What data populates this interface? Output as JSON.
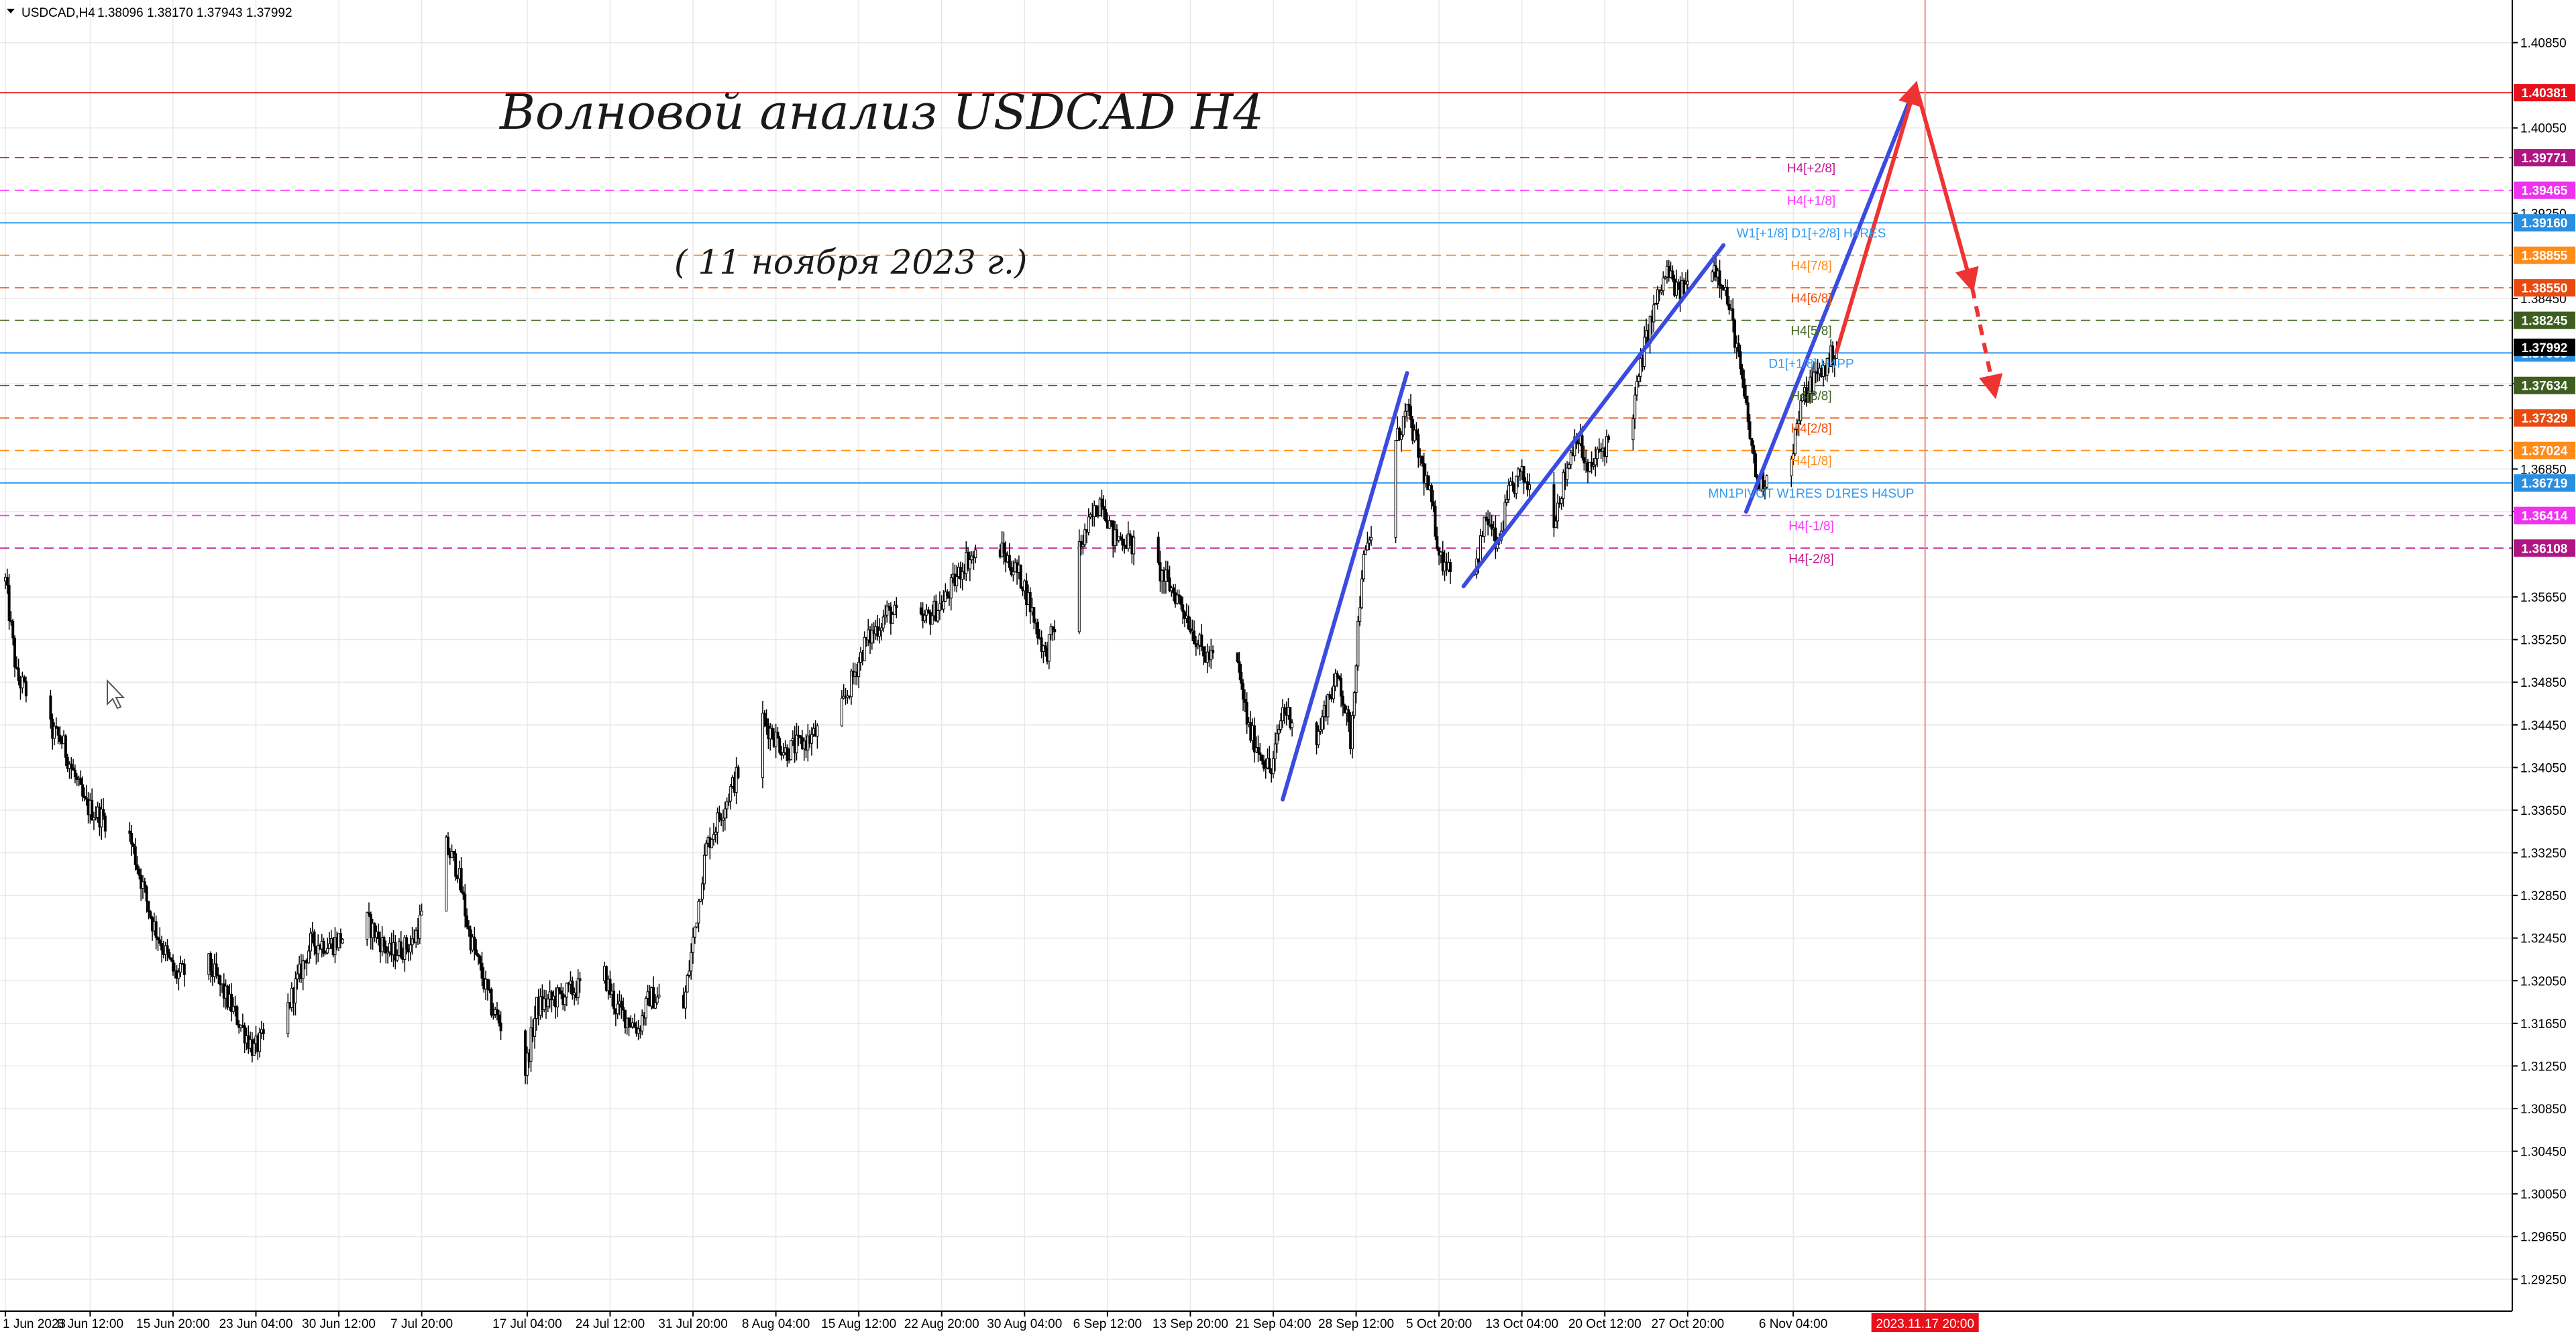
{
  "header": {
    "symbol": "USDCAD,H4",
    "ohlc": "1.38096 1.38170 1.37943 1.37992"
  },
  "title": "Волновой анализ USDCAD H4",
  "subtitle": "( 11 ноября 2023 г.)",
  "colors": {
    "background": "#ffffff",
    "grid": "#e6e6e6",
    "candle": "#000000",
    "wave": "#3a4be0",
    "forecast": "#ee3333",
    "vline": "#f08a8a",
    "axis": "#000000"
  },
  "chart_data": {
    "type": "candlestick",
    "symbol": "USDCAD",
    "timeframe": "H4",
    "ylim": [
      1.2895,
      1.4125
    ],
    "xlim": [
      "2023-06-01",
      "2023-11-24"
    ],
    "grid": true,
    "y_ticks": [
      "1.40850",
      "1.40050",
      "1.39250",
      "1.38450",
      "1.37650",
      "1.36850",
      "1.36450",
      "1.35650",
      "1.35250",
      "1.34850",
      "1.34450",
      "1.34050",
      "1.33650",
      "1.33250",
      "1.32850",
      "1.32450",
      "1.32050",
      "1.31650",
      "1.31250",
      "1.30850",
      "1.30450",
      "1.30050",
      "1.29650",
      "1.29250"
    ],
    "x_ticks": [
      {
        "label": "1 Jun 2023",
        "date": "2023-06-01"
      },
      {
        "label": "8 Jun 12:00",
        "date": "2023-06-08T12"
      },
      {
        "label": "15 Jun 20:00",
        "date": "2023-06-15T20"
      },
      {
        "label": "23 Jun 04:00",
        "date": "2023-06-23T04"
      },
      {
        "label": "30 Jun 12:00",
        "date": "2023-06-30T12"
      },
      {
        "label": "7 Jul 20:00",
        "date": "2023-07-07T20"
      },
      {
        "label": "17 Jul 04:00",
        "date": "2023-07-17T04"
      },
      {
        "label": "24 Jul 12:00",
        "date": "2023-07-24T12"
      },
      {
        "label": "31 Jul 20:00",
        "date": "2023-07-31T20"
      },
      {
        "label": "8 Aug 04:00",
        "date": "2023-08-08T04"
      },
      {
        "label": "15 Aug 12:00",
        "date": "2023-08-15T12"
      },
      {
        "label": "22 Aug 20:00",
        "date": "2023-08-22T20"
      },
      {
        "label": "30 Aug 04:00",
        "date": "2023-08-30T04"
      },
      {
        "label": "6 Sep 12:00",
        "date": "2023-09-06T12"
      },
      {
        "label": "13 Sep 20:00",
        "date": "2023-09-13T20"
      },
      {
        "label": "21 Sep 04:00",
        "date": "2023-09-21T04"
      },
      {
        "label": "28 Sep 12:00",
        "date": "2023-09-28T12"
      },
      {
        "label": "5 Oct 20:00",
        "date": "2023-10-05T20"
      },
      {
        "label": "13 Oct 04:00",
        "date": "2023-10-13T04"
      },
      {
        "label": "20 Oct 12:00",
        "date": "2023-10-20T12"
      },
      {
        "label": "27 Oct 20:00",
        "date": "2023-10-27T20"
      },
      {
        "label": "6 Nov 04:00",
        "date": "2023-11-06T04"
      }
    ],
    "marker": {
      "label": "2023.11.17 20:00",
      "date": "2023-11-17T20"
    },
    "levels": [
      {
        "name": "",
        "price": 1.40381,
        "label": "1.40381",
        "color": "#e03030",
        "style": "solid",
        "badge": "#e8101a"
      },
      {
        "name": "H4[+2/8]",
        "price": 1.39771,
        "label": "1.39771",
        "color": "#c2188c",
        "style": "dashed",
        "badge": "#b01682"
      },
      {
        "name": "H4[+1/8]",
        "price": 1.39465,
        "label": "1.39465",
        "color": "#ff33ff",
        "style": "dashed",
        "badge": "#ee33ee"
      },
      {
        "name": "W1[+1/8] D1[+2/8] H4RES",
        "price": 1.3916,
        "label": "1.39160",
        "color": "#3399ee",
        "style": "solid",
        "badge": "#2a8fe0"
      },
      {
        "name": "H4[7/8]",
        "price": 1.38855,
        "label": "1.38855",
        "color": "#ff8c1a",
        "style": "dashed",
        "badge": "#ff8c1a"
      },
      {
        "name": "H4[6/8]",
        "price": 1.3855,
        "label": "1.38550",
        "color": "#ee5511",
        "style": "dashed",
        "badge": "#e84a10"
      },
      {
        "name": "H4[5/8]",
        "price": 1.38245,
        "label": "1.38245",
        "color": "#446622",
        "style": "dashed",
        "badge": "#3e5e20"
      },
      {
        "name": "D1[+1/8] H4PP",
        "price": 1.37939,
        "label": "1.37939",
        "color": "#3399ee",
        "style": "solid",
        "badge": "#2a8fe0"
      },
      {
        "name": "H4[3/8]",
        "price": 1.37634,
        "label": "1.37634",
        "color": "#446622",
        "style": "dashed",
        "badge": "#3e5e20"
      },
      {
        "name": "H4[2/8]",
        "price": 1.37329,
        "label": "1.37329",
        "color": "#ee5511",
        "style": "dashed",
        "badge": "#e84a10"
      },
      {
        "name": "H4[1/8]",
        "price": 1.37024,
        "label": "1.37024",
        "color": "#ff8c1a",
        "style": "dashed",
        "badge": "#ff8c1a"
      },
      {
        "name": "MN1PIVOT W1RES D1RES H4SUP",
        "price": 1.36719,
        "label": "1.36719",
        "color": "#3399ee",
        "style": "solid",
        "badge": "#2a8fe0"
      },
      {
        "name": "H4[-1/8]",
        "price": 1.36414,
        "label": "1.36414",
        "color": "#ff33ff",
        "style": "dashed",
        "badge": "#ee33ee"
      },
      {
        "name": "H4[-2/8]",
        "price": 1.36108,
        "label": "1.36108",
        "color": "#c2188c",
        "style": "dashed",
        "badge": "#b01682"
      }
    ],
    "current_price": {
      "price": 1.37992,
      "label": "1.37992"
    },
    "price_path": [
      [
        "2023-06-01",
        1.358
      ],
      [
        "2023-06-02",
        1.349
      ],
      [
        "2023-06-05",
        1.344
      ],
      [
        "2023-06-06",
        1.343
      ],
      [
        "2023-06-08",
        1.337
      ],
      [
        "2023-06-12",
        1.334
      ],
      [
        "2023-06-14",
        1.326
      ],
      [
        "2023-06-16",
        1.321
      ],
      [
        "2023-06-19",
        1.322
      ],
      [
        "2023-06-21",
        1.318
      ],
      [
        "2023-06-23",
        1.314
      ],
      [
        "2023-06-26",
        1.318
      ],
      [
        "2023-06-28",
        1.324
      ],
      [
        "2023-06-30",
        1.324
      ],
      [
        "2023-07-03",
        1.326
      ],
      [
        "2023-07-05",
        1.323
      ],
      [
        "2023-07-07",
        1.324
      ],
      [
        "2023-07-10",
        1.333
      ],
      [
        "2023-07-11",
        1.331
      ],
      [
        "2023-07-12",
        1.325
      ],
      [
        "2023-07-14",
        1.318
      ],
      [
        "2023-07-17",
        1.312
      ],
      [
        "2023-07-18",
        1.318
      ],
      [
        "2023-07-20",
        1.319
      ],
      [
        "2023-07-24",
        1.321
      ],
      [
        "2023-07-25",
        1.318
      ],
      [
        "2023-07-27",
        1.316
      ],
      [
        "2023-07-28",
        1.319
      ],
      [
        "2023-07-31",
        1.318
      ],
      [
        "2023-08-02",
        1.333
      ],
      [
        "2023-08-04",
        1.338
      ],
      [
        "2023-08-07",
        1.345
      ],
      [
        "2023-08-09",
        1.342
      ],
      [
        "2023-08-11",
        1.343
      ],
      [
        "2023-08-14",
        1.346
      ],
      [
        "2023-08-16",
        1.352
      ],
      [
        "2023-08-18",
        1.355
      ],
      [
        "2023-08-21",
        1.354
      ],
      [
        "2023-08-23",
        1.356
      ],
      [
        "2023-08-25",
        1.36
      ],
      [
        "2023-08-28",
        1.361
      ],
      [
        "2023-08-30",
        1.358
      ],
      [
        "2023-09-01",
        1.351
      ],
      [
        "2023-09-04",
        1.361
      ],
      [
        "2023-09-06",
        1.366
      ],
      [
        "2023-09-07",
        1.362
      ],
      [
        "2023-09-08",
        1.362
      ],
      [
        "2023-09-11",
        1.359
      ],
      [
        "2023-09-13",
        1.356
      ],
      [
        "2023-09-15",
        1.351
      ],
      [
        "2023-09-18",
        1.35
      ],
      [
        "2023-09-19",
        1.344
      ],
      [
        "2023-09-21",
        1.34
      ],
      [
        "2023-09-22",
        1.346
      ],
      [
        "2023-09-25",
        1.343
      ],
      [
        "2023-09-26",
        1.347
      ],
      [
        "2023-09-27",
        1.349
      ],
      [
        "2023-09-28",
        1.343
      ],
      [
        "2023-09-29",
        1.359
      ],
      [
        "2023-10-02",
        1.371
      ],
      [
        "2023-10-03",
        1.374
      ],
      [
        "2023-10-04",
        1.37
      ],
      [
        "2023-10-05",
        1.366
      ],
      [
        "2023-10-06",
        1.36
      ],
      [
        "2023-10-09",
        1.359
      ],
      [
        "2023-10-10",
        1.364
      ],
      [
        "2023-10-11",
        1.361
      ],
      [
        "2023-10-12",
        1.366
      ],
      [
        "2023-10-13",
        1.368
      ],
      [
        "2023-10-16",
        1.364
      ],
      [
        "2023-10-17",
        1.368
      ],
      [
        "2023-10-18",
        1.372
      ],
      [
        "2023-10-19",
        1.368
      ],
      [
        "2023-10-20",
        1.37
      ],
      [
        "2023-10-23",
        1.374
      ],
      [
        "2023-10-24",
        1.38
      ],
      [
        "2023-10-25",
        1.384
      ],
      [
        "2023-10-26",
        1.387
      ],
      [
        "2023-10-27",
        1.385
      ],
      [
        "2023-10-30",
        1.388
      ],
      [
        "2023-10-31",
        1.386
      ],
      [
        "2023-11-01",
        1.381
      ],
      [
        "2023-11-02",
        1.374
      ],
      [
        "2023-11-03",
        1.367
      ],
      [
        "2023-11-06",
        1.37
      ],
      [
        "2023-11-07",
        1.375
      ],
      [
        "2023-11-08",
        1.377
      ],
      [
        "2023-11-09",
        1.378
      ],
      [
        "2023-11-10",
        1.3799
      ]
    ],
    "wave_lines": [
      {
        "from": [
          "2023-09-22",
          1.3375
        ],
        "to": [
          "2023-10-03",
          1.3775
        ]
      },
      {
        "from": [
          "2023-10-08",
          1.3575
        ],
        "to": [
          "2023-10-31",
          1.3895
        ]
      },
      {
        "from": [
          "2023-11-02",
          1.3645
        ],
        "to": [
          "2023-11-17",
          1.4045
        ]
      }
    ],
    "forecast_path": [
      [
        "2023-11-10",
        1.3795
      ],
      [
        "2023-11-17",
        1.4045
      ],
      [
        "2023-11-22",
        1.3855
      ]
    ],
    "forecast_dashed": [
      [
        "2023-11-22",
        1.3855
      ],
      [
        "2023-11-24",
        1.3755
      ]
    ],
    "wave_color": "#3a4be0",
    "forecast_color": "#ee3333"
  }
}
